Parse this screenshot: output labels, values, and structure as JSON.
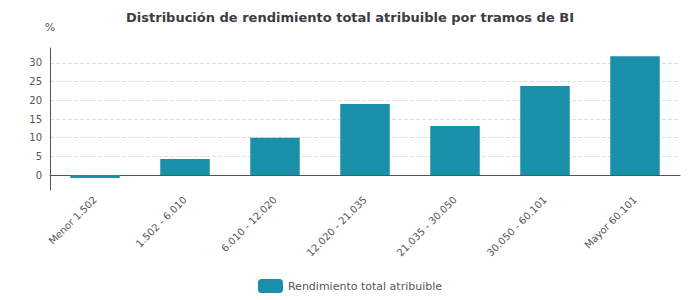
{
  "chart_data": {
    "type": "bar",
    "title": "Distribución de rendimiento total atribuible por tramos de BI",
    "categories": [
      "Menor 1.502",
      "1.502 - 6.010",
      "6.010 - 12.020",
      "12.020 - 21.035",
      "21.035 - 30.050",
      "30.050 - 60.101",
      "Mayor 60.101"
    ],
    "series": [
      {
        "name": "Rendimiento total atribuible",
        "color": "#1a8faa",
        "values": [
          -0.8,
          4.3,
          10.0,
          19.0,
          13.1,
          23.8,
          31.8
        ]
      }
    ],
    "ylabel": "%",
    "ylim": [
      -4,
      34
    ],
    "yticks": [
      0,
      5,
      10,
      15,
      20,
      25,
      30
    ],
    "grid": true,
    "legend": "bottom"
  }
}
